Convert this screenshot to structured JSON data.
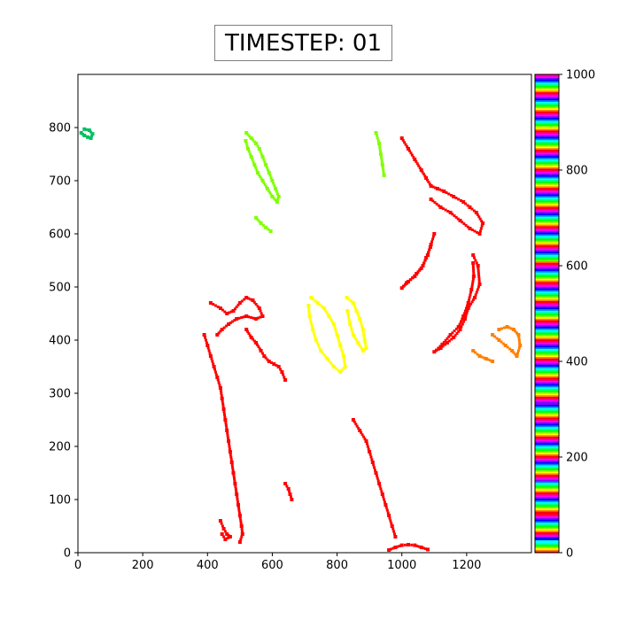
{
  "title": "TIMESTEP: 01",
  "chart_data": {
    "type": "heatmap",
    "title": "TIMESTEP: 01",
    "xlabel": "",
    "ylabel": "",
    "xlim": [
      0,
      1400
    ],
    "ylim": [
      0,
      900
    ],
    "x_ticks": [
      0,
      200,
      400,
      600,
      800,
      1000,
      1200
    ],
    "y_ticks": [
      0,
      100,
      200,
      300,
      400,
      500,
      600,
      700,
      800
    ],
    "colorbar": {
      "range": [
        0,
        1000
      ],
      "ticks": [
        0,
        200,
        400,
        600,
        800,
        1000
      ],
      "cycle_colors": [
        "#ff0000",
        "#ff8000",
        "#ffff00",
        "#80ff00",
        "#00ff00",
        "#00ff80",
        "#00ffff",
        "#0080ff",
        "#0000ff",
        "#8000ff",
        "#ff00ff",
        "#ff0080"
      ],
      "cycle_length": 40
    },
    "grid": false,
    "legend": "colorbar-right",
    "regions": [
      {
        "value": 1,
        "color": "#ff0000",
        "points": [
          [
            1220,
            560
          ],
          [
            1235,
            540
          ],
          [
            1240,
            505
          ],
          [
            1225,
            480
          ],
          [
            1205,
            460
          ],
          [
            1195,
            440
          ],
          [
            1180,
            420
          ],
          [
            1160,
            405
          ],
          [
            1140,
            395
          ],
          [
            1120,
            385
          ],
          [
            1100,
            378
          ],
          [
            1125,
            392
          ],
          [
            1150,
            410
          ],
          [
            1175,
            425
          ],
          [
            1190,
            445
          ],
          [
            1205,
            470
          ],
          [
            1215,
            495
          ],
          [
            1222,
            520
          ],
          [
            1220,
            545
          ]
        ]
      },
      {
        "value": 1,
        "color": "#ff0000",
        "points": [
          [
            1100,
            600
          ],
          [
            1090,
            580
          ],
          [
            1080,
            560
          ],
          [
            1065,
            540
          ],
          [
            1045,
            525
          ],
          [
            1020,
            510
          ],
          [
            1000,
            498
          ],
          [
            1015,
            508
          ],
          [
            1040,
            520
          ],
          [
            1060,
            535
          ],
          [
            1075,
            555
          ],
          [
            1088,
            575
          ]
        ]
      },
      {
        "value": 1,
        "color": "#ff0000",
        "points": [
          [
            1000,
            780
          ],
          [
            1020,
            760
          ],
          [
            1040,
            740
          ],
          [
            1060,
            720
          ],
          [
            1075,
            705
          ],
          [
            1090,
            690
          ],
          [
            1110,
            685
          ],
          [
            1130,
            680
          ],
          [
            1160,
            670
          ],
          [
            1190,
            660
          ],
          [
            1210,
            650
          ],
          [
            1230,
            640
          ],
          [
            1250,
            620
          ],
          [
            1240,
            600
          ],
          [
            1210,
            610
          ],
          [
            1180,
            625
          ],
          [
            1150,
            640
          ],
          [
            1120,
            650
          ],
          [
            1090,
            665
          ]
        ]
      },
      {
        "value": 1,
        "color": "#ff0000",
        "points": [
          [
            410,
            470
          ],
          [
            440,
            460
          ],
          [
            460,
            450
          ],
          [
            480,
            455
          ],
          [
            500,
            470
          ],
          [
            520,
            480
          ],
          [
            540,
            475
          ],
          [
            560,
            460
          ],
          [
            570,
            445
          ],
          [
            550,
            440
          ],
          [
            520,
            445
          ],
          [
            490,
            440
          ],
          [
            465,
            430
          ],
          [
            445,
            420
          ],
          [
            430,
            410
          ]
        ]
      },
      {
        "value": 1,
        "color": "#ff0000",
        "points": [
          [
            390,
            410
          ],
          [
            400,
            390
          ],
          [
            410,
            370
          ],
          [
            420,
            350
          ],
          [
            430,
            330
          ],
          [
            440,
            310
          ],
          [
            445,
            290
          ],
          [
            450,
            270
          ],
          [
            455,
            250
          ],
          [
            460,
            230
          ],
          [
            465,
            210
          ],
          [
            470,
            190
          ],
          [
            475,
            170
          ],
          [
            480,
            150
          ],
          [
            485,
            130
          ],
          [
            490,
            110
          ],
          [
            495,
            90
          ],
          [
            500,
            70
          ],
          [
            505,
            50
          ],
          [
            508,
            35
          ],
          [
            500,
            20
          ]
        ]
      },
      {
        "value": 1,
        "color": "#ff0000",
        "points": [
          [
            440,
            60
          ],
          [
            450,
            45
          ],
          [
            460,
            35
          ],
          [
            470,
            30
          ],
          [
            455,
            25
          ],
          [
            445,
            35
          ]
        ]
      },
      {
        "value": 1,
        "color": "#ff0000",
        "points": [
          [
            960,
            5
          ],
          [
            980,
            10
          ],
          [
            1000,
            14
          ],
          [
            1020,
            15
          ],
          [
            1040,
            14
          ],
          [
            1060,
            10
          ],
          [
            1080,
            6
          ]
        ]
      },
      {
        "value": 1,
        "color": "#ff0000",
        "points": [
          [
            520,
            420
          ],
          [
            535,
            405
          ],
          [
            550,
            395
          ],
          [
            565,
            380
          ],
          [
            575,
            370
          ],
          [
            590,
            360
          ],
          [
            605,
            355
          ],
          [
            620,
            350
          ],
          [
            630,
            340
          ],
          [
            640,
            325
          ]
        ]
      },
      {
        "value": 1,
        "color": "#ff0000",
        "points": [
          [
            850,
            250
          ],
          [
            870,
            230
          ],
          [
            890,
            210
          ],
          [
            900,
            190
          ],
          [
            910,
            170
          ],
          [
            920,
            150
          ],
          [
            930,
            130
          ],
          [
            940,
            110
          ],
          [
            950,
            90
          ],
          [
            960,
            70
          ],
          [
            970,
            50
          ],
          [
            980,
            30
          ]
        ]
      },
      {
        "value": 1,
        "color": "#ff0000",
        "points": [
          [
            640,
            130
          ],
          [
            650,
            120
          ],
          [
            655,
            110
          ],
          [
            660,
            100
          ]
        ]
      },
      {
        "value": 400,
        "color": "#ffff00",
        "points": [
          [
            720,
            480
          ],
          [
            740,
            470
          ],
          [
            760,
            460
          ],
          [
            775,
            445
          ],
          [
            790,
            430
          ],
          [
            800,
            410
          ],
          [
            810,
            390
          ],
          [
            820,
            370
          ],
          [
            825,
            350
          ],
          [
            810,
            340
          ],
          [
            790,
            350
          ],
          [
            770,
            365
          ],
          [
            750,
            380
          ],
          [
            735,
            400
          ],
          [
            725,
            420
          ],
          [
            715,
            445
          ],
          [
            712,
            465
          ]
        ]
      },
      {
        "value": 400,
        "color": "#ffff00",
        "points": [
          [
            830,
            480
          ],
          [
            850,
            470
          ],
          [
            860,
            455
          ],
          [
            870,
            440
          ],
          [
            880,
            420
          ],
          [
            885,
            400
          ],
          [
            890,
            385
          ],
          [
            880,
            380
          ],
          [
            865,
            395
          ],
          [
            850,
            410
          ],
          [
            840,
            430
          ],
          [
            832,
            455
          ]
        ]
      },
      {
        "value": 600,
        "color": "#80ff00",
        "points": [
          [
            520,
            790
          ],
          [
            535,
            780
          ],
          [
            550,
            770
          ],
          [
            560,
            760
          ],
          [
            570,
            745
          ],
          [
            580,
            730
          ],
          [
            590,
            715
          ],
          [
            600,
            700
          ],
          [
            610,
            685
          ],
          [
            620,
            670
          ],
          [
            615,
            660
          ],
          [
            600,
            670
          ],
          [
            585,
            685
          ],
          [
            570,
            700
          ],
          [
            555,
            715
          ],
          [
            545,
            730
          ],
          [
            535,
            745
          ],
          [
            525,
            760
          ],
          [
            518,
            775
          ]
        ]
      },
      {
        "value": 600,
        "color": "#80ff00",
        "points": [
          [
            550,
            630
          ],
          [
            565,
            620
          ],
          [
            580,
            612
          ],
          [
            595,
            605
          ]
        ]
      },
      {
        "value": 600,
        "color": "#80ff00",
        "points": [
          [
            920,
            790
          ],
          [
            930,
            770
          ],
          [
            935,
            750
          ],
          [
            940,
            730
          ],
          [
            945,
            710
          ]
        ]
      },
      {
        "value": 700,
        "color": "#00c060",
        "points": [
          [
            10,
            790
          ],
          [
            20,
            785
          ],
          [
            30,
            782
          ],
          [
            40,
            780
          ],
          [
            45,
            788
          ],
          [
            35,
            795
          ],
          [
            20,
            797
          ]
        ]
      },
      {
        "value": 200,
        "color": "#ff8000",
        "points": [
          [
            1280,
            410
          ],
          [
            1300,
            400
          ],
          [
            1320,
            390
          ],
          [
            1340,
            380
          ],
          [
            1355,
            370
          ],
          [
            1365,
            390
          ],
          [
            1360,
            410
          ],
          [
            1345,
            420
          ],
          [
            1325,
            425
          ],
          [
            1300,
            420
          ]
        ]
      },
      {
        "value": 200,
        "color": "#ff8000",
        "points": [
          [
            1220,
            380
          ],
          [
            1240,
            370
          ],
          [
            1260,
            365
          ],
          [
            1280,
            360
          ]
        ]
      }
    ]
  }
}
